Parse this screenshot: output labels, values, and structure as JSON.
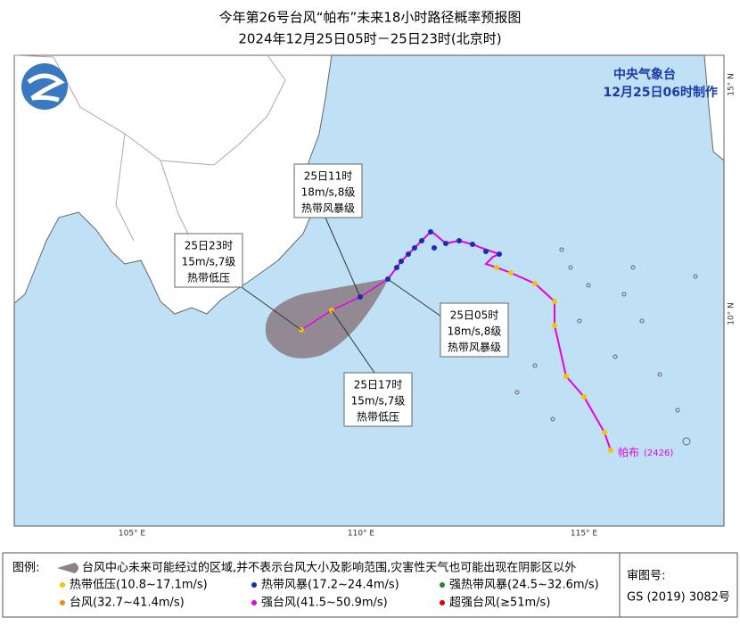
{
  "header": {
    "title": "今年第26号台风“帕布”未来18小时路径概率预报图",
    "subtitle": "2024年12月25日05时－25日23时(北京时)"
  },
  "agency": {
    "name": "中央气象台",
    "issued": "12月25日06时制作"
  },
  "axes": {
    "lat": [
      "15° N",
      "10° N"
    ],
    "lon": [
      "105° E",
      "110° E",
      "115° E"
    ]
  },
  "callouts": [
    {
      "time": "25日11时",
      "wind": "18m/s,8级",
      "level": "热带风暴级"
    },
    {
      "time": "25日23时",
      "wind": "15m/s,7级",
      "level": "热带低压"
    },
    {
      "time": "25日05时",
      "wind": "18m/s,8级",
      "level": "热带风暴级"
    },
    {
      "time": "25日17时",
      "wind": "15m/s,7级",
      "level": "热带低压"
    }
  ],
  "typhoon": {
    "name": "帕布",
    "code": "(2426)"
  },
  "legend": {
    "title": "图例:",
    "cone": "台风中心未来可能经过的区域,并不表示台风大小及影响范围,灾害性天气也可能出现在阴影区以外",
    "items": [
      "热带低压(10.8~17.1m/s)",
      "热带风暴(17.2~24.4m/s)",
      "强热带风暴(24.5~32.6m/s)",
      "台风(32.7~41.4m/s)",
      "强台风(41.5~50.9m/s)",
      "超强台风(≥51m/s)"
    ]
  },
  "approval": {
    "label": "审图号:",
    "number": "GS (2019) 3082号"
  }
}
